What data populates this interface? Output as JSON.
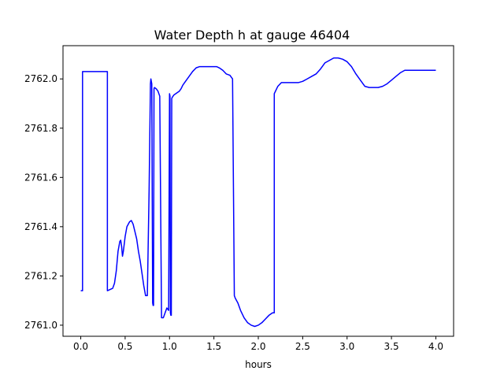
{
  "chart_data": {
    "type": "line",
    "title": "Water Depth h at gauge 46404",
    "xlabel": "hours",
    "ylabel": "",
    "xlim": [
      -0.2,
      4.2
    ],
    "ylim": [
      2760.955,
      2762.135
    ],
    "xticks": [
      0.0,
      0.5,
      1.0,
      1.5,
      2.0,
      2.5,
      3.0,
      3.5,
      4.0
    ],
    "xtick_labels": [
      "0.0",
      "0.5",
      "1.0",
      "1.5",
      "2.0",
      "2.5",
      "3.0",
      "3.5",
      "4.0"
    ],
    "yticks": [
      2761.0,
      2761.2,
      2761.4,
      2761.6,
      2761.8,
      2762.0
    ],
    "ytick_labels": [
      "2761.0",
      "2761.2",
      "2761.4",
      "2761.6",
      "2761.8",
      "2762.0"
    ],
    "grid": false,
    "series": [
      {
        "color": "#0000ff",
        "x": [
          0.0,
          0.02,
          0.02,
          0.3,
          0.3,
          0.36,
          0.38,
          0.4,
          0.42,
          0.44,
          0.45,
          0.46,
          0.47,
          0.48,
          0.5,
          0.52,
          0.55,
          0.57,
          0.59,
          0.61,
          0.63,
          0.65,
          0.67,
          0.69,
          0.71,
          0.73,
          0.75,
          0.77,
          0.785,
          0.79,
          0.79,
          0.8,
          0.81,
          0.81,
          0.815,
          0.82,
          0.825,
          0.83,
          0.83,
          0.85,
          0.87,
          0.89,
          0.91,
          0.93,
          0.935,
          0.95,
          0.97,
          0.99,
          1.0,
          1.0,
          1.005,
          1.01,
          1.015,
          1.02,
          1.025,
          1.03,
          1.03,
          1.04,
          1.05,
          1.07,
          1.09,
          1.11,
          1.13,
          1.15,
          1.18,
          1.22,
          1.26,
          1.3,
          1.34,
          1.38,
          1.41,
          1.44,
          1.47,
          1.5,
          1.53,
          1.56,
          1.6,
          1.64,
          1.68,
          1.71,
          1.73,
          1.74,
          1.74,
          1.77,
          1.8,
          1.84,
          1.88,
          1.92,
          1.96,
          2.0,
          2.04,
          2.08,
          2.12,
          2.16,
          2.18,
          2.18,
          2.22,
          2.26,
          2.3,
          2.35,
          2.4,
          2.45,
          2.5,
          2.55,
          2.6,
          2.65,
          2.7,
          2.75,
          2.8,
          2.85,
          2.9,
          2.95,
          3.0,
          3.05,
          3.1,
          3.15,
          3.2,
          3.25,
          3.3,
          3.35,
          3.4,
          3.45,
          3.5,
          3.55,
          3.6,
          3.65,
          3.7,
          3.75,
          3.8,
          3.85,
          3.9,
          3.95,
          4.0
        ],
        "y": [
          2761.14,
          2761.14,
          2762.03,
          2762.03,
          2761.14,
          2761.15,
          2761.17,
          2761.22,
          2761.3,
          2761.34,
          2761.345,
          2761.32,
          2761.28,
          2761.3,
          2761.36,
          2761.4,
          2761.42,
          2761.425,
          2761.41,
          2761.38,
          2761.35,
          2761.3,
          2761.26,
          2761.21,
          2761.16,
          2761.12,
          2761.12,
          2761.55,
          2761.98,
          2762.0,
          2762.0,
          2761.98,
          2761.09,
          2761.09,
          2761.08,
          2761.08,
          2761.96,
          2761.965,
          2761.965,
          2761.96,
          2761.95,
          2761.93,
          2761.03,
          2761.03,
          2761.035,
          2761.05,
          2761.07,
          2761.06,
          2761.94,
          2761.94,
          2761.93,
          2761.05,
          2761.04,
          2761.04,
          2761.92,
          2761.925,
          2761.925,
          2761.93,
          2761.935,
          2761.94,
          2761.945,
          2761.95,
          2761.96,
          2761.975,
          2761.99,
          2762.01,
          2762.03,
          2762.045,
          2762.05,
          2762.05,
          2762.05,
          2762.05,
          2762.05,
          2762.05,
          2762.05,
          2762.045,
          2762.035,
          2762.02,
          2762.015,
          2762.0,
          2761.12,
          2761.11,
          2761.11,
          2761.09,
          2761.06,
          2761.03,
          2761.01,
          2761.0,
          2760.995,
          2761.0,
          2761.01,
          2761.025,
          2761.04,
          2761.05,
          2761.05,
          2761.94,
          2761.97,
          2761.985,
          2761.985,
          2761.985,
          2761.985,
          2761.985,
          2761.99,
          2762.0,
          2762.01,
          2762.02,
          2762.04,
          2762.065,
          2762.075,
          2762.085,
          2762.085,
          2762.08,
          2762.07,
          2762.05,
          2762.02,
          2761.995,
          2761.97,
          2761.965,
          2761.965,
          2761.965,
          2761.97,
          2761.98,
          2761.995,
          2762.01,
          2762.025,
          2762.035,
          2762.035,
          2762.035,
          2762.035,
          2762.035,
          2762.035,
          2762.035,
          2762.035
        ]
      }
    ]
  }
}
